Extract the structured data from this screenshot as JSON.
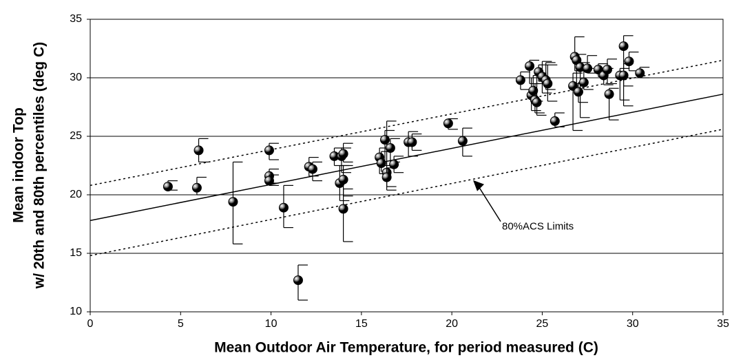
{
  "chart_data": {
    "type": "scatter",
    "xlabel": "Mean Outdoor Air Temperature, for period measured (C)",
    "ylabel": [
      "Mean indoor Top",
      "w/ 20th and 80th percentiles (deg C)"
    ],
    "annotation": "80%ACS Limits",
    "xlim": [
      0,
      35
    ],
    "xticks": [
      0,
      5,
      10,
      15,
      20,
      25,
      30,
      35
    ],
    "ylim": [
      10,
      35
    ],
    "yticks": [
      10,
      15,
      20,
      25,
      30,
      35
    ],
    "grid": true,
    "color": "#000000",
    "regression": {
      "x": [
        0,
        35
      ],
      "y": [
        17.8,
        28.6
      ]
    },
    "limit_upper": {
      "x": [
        0,
        35
      ],
      "y": [
        20.8,
        31.5
      ]
    },
    "limit_lower": {
      "x": [
        0,
        35
      ],
      "y": [
        14.8,
        25.6
      ]
    },
    "x": [
      4.3,
      6.0,
      5.9,
      7.9,
      9.9,
      9.9,
      9.9,
      10.7,
      11.5,
      12.1,
      12.3,
      13.5,
      13.8,
      13.9,
      14.0,
      14.0,
      14.0,
      16.0,
      16.1,
      16.3,
      16.4,
      16.4,
      16.6,
      16.8,
      17.6,
      17.8,
      19.8,
      20.6,
      23.8,
      24.3,
      24.4,
      24.5,
      24.6,
      24.7,
      24.8,
      25.0,
      25.2,
      25.3,
      25.7,
      26.7,
      26.8,
      26.9,
      27.1,
      27.0,
      27.3,
      27.5,
      28.1,
      28.4,
      28.6,
      28.7,
      29.3,
      29.5,
      29.5,
      29.8,
      30.4
    ],
    "y": [
      20.7,
      23.8,
      20.6,
      19.4,
      23.8,
      21.6,
      21.2,
      18.9,
      12.7,
      22.4,
      22.2,
      23.3,
      21.0,
      23.3,
      23.5,
      21.3,
      18.8,
      23.2,
      22.7,
      24.7,
      21.9,
      21.5,
      24.0,
      22.6,
      24.5,
      24.5,
      26.1,
      24.6,
      29.8,
      31.0,
      28.5,
      28.9,
      28.1,
      27.9,
      30.5,
      30.1,
      29.8,
      29.5,
      26.3,
      29.3,
      31.8,
      31.5,
      30.9,
      28.8,
      29.6,
      30.8,
      30.7,
      30.2,
      30.7,
      28.6,
      30.2,
      32.7,
      30.2,
      31.4,
      30.4
    ],
    "lower": [
      20.4,
      22.8,
      20.0,
      15.8,
      23.0,
      21.0,
      20.8,
      17.2,
      11.0,
      21.6,
      21.2,
      22.5,
      19.5,
      21.9,
      22.8,
      19.9,
      16.0,
      21.8,
      22.0,
      22.5,
      20.4,
      20.7,
      22.8,
      21.9,
      23.3,
      23.8,
      25.6,
      23.3,
      29.0,
      29.5,
      27.2,
      28.0,
      27.0,
      26.8,
      29.7,
      28.7,
      29.0,
      28.0,
      25.8,
      25.5,
      30.6,
      29.5,
      26.6,
      27.9,
      29.0,
      30.4,
      30.1,
      29.4,
      29.5,
      26.4,
      28.1,
      27.6,
      29.3,
      30.6,
      30.0
    ],
    "upper": [
      21.2,
      24.8,
      21.5,
      22.8,
      24.4,
      22.2,
      21.7,
      20.8,
      14.0,
      23.2,
      22.8,
      24.0,
      22.5,
      24.0,
      24.4,
      22.5,
      20.5,
      24.0,
      23.7,
      25.5,
      26.3,
      22.3,
      24.8,
      23.3,
      25.4,
      25.2,
      26.5,
      25.7,
      30.5,
      31.5,
      30.0,
      30.2,
      29.5,
      30.4,
      31.1,
      31.4,
      31.3,
      31.1,
      27.0,
      30.4,
      33.5,
      32.0,
      31.3,
      29.6,
      30.8,
      31.9,
      31.2,
      30.8,
      31.6,
      29.1,
      30.8,
      33.6,
      31.2,
      32.2,
      30.9
    ]
  }
}
